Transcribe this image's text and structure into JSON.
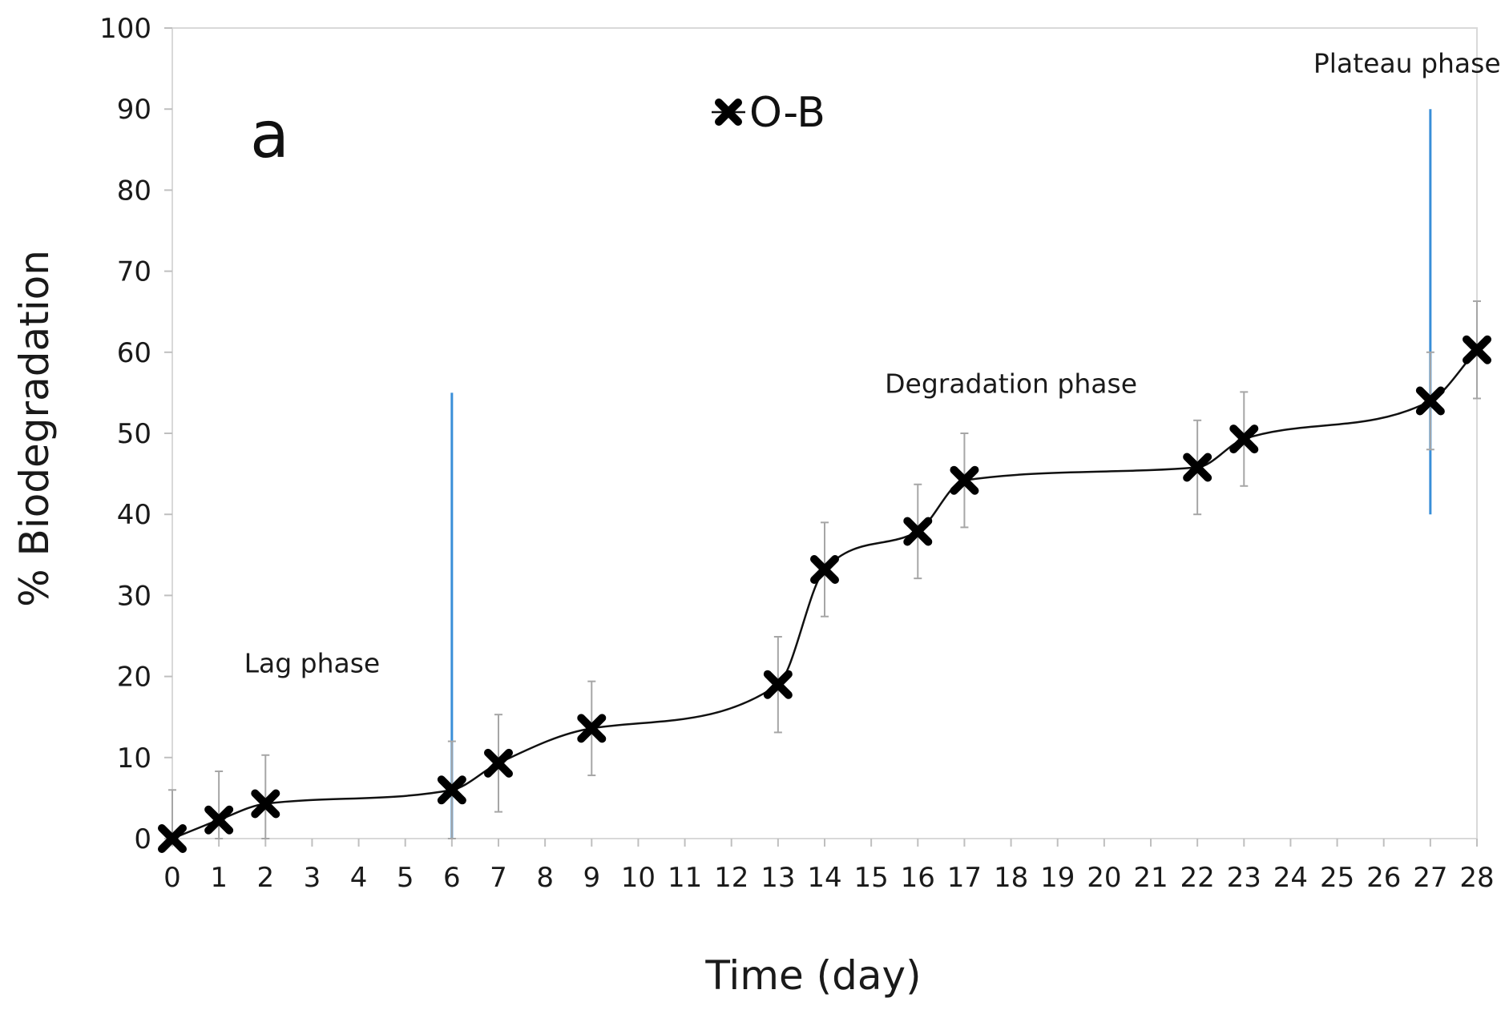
{
  "chart_data": {
    "type": "line",
    "title": "",
    "panel_label": "a",
    "xlabel": "Time (day)",
    "ylabel": "% Biodegradation",
    "xlim": [
      0,
      28
    ],
    "ylim": [
      0,
      100
    ],
    "x_ticks": [
      0,
      1,
      2,
      3,
      4,
      5,
      6,
      7,
      8,
      9,
      10,
      11,
      12,
      13,
      14,
      15,
      16,
      17,
      18,
      19,
      20,
      21,
      22,
      23,
      24,
      25,
      26,
      27,
      28
    ],
    "y_ticks": [
      0,
      10,
      20,
      30,
      40,
      50,
      60,
      70,
      80,
      90,
      100
    ],
    "grid": false,
    "legend": {
      "position": "top-center",
      "entries": [
        "O-B"
      ]
    },
    "series": [
      {
        "name": "O-B",
        "marker": "x",
        "color": "#000000",
        "x": [
          0,
          1,
          2,
          6,
          7,
          9,
          13,
          14,
          16,
          17,
          22,
          23,
          27,
          28
        ],
        "values": [
          0,
          2.3,
          4.3,
          6.0,
          9.3,
          13.6,
          19.0,
          33.2,
          37.9,
          44.2,
          45.8,
          49.3,
          54.0,
          60.3
        ],
        "error": [
          6.0,
          6.0,
          6.0,
          6.0,
          6.0,
          5.8,
          5.9,
          5.8,
          5.8,
          5.8,
          5.8,
          5.8,
          6.0,
          6.0
        ]
      }
    ],
    "vertical_lines": [
      {
        "x": 6,
        "y_from": 0,
        "y_to": 55,
        "color": "#3a8fd8"
      },
      {
        "x": 27,
        "y_from": 40,
        "y_to": 90,
        "color": "#3a8fd8"
      }
    ],
    "annotations": [
      {
        "text": "Lag phase",
        "x": 3,
        "y": 20.5
      },
      {
        "text": "Degradation phase",
        "x": 18,
        "y": 55
      },
      {
        "text": "Plateau phase",
        "x": 26.5,
        "y": 94.5
      }
    ]
  }
}
